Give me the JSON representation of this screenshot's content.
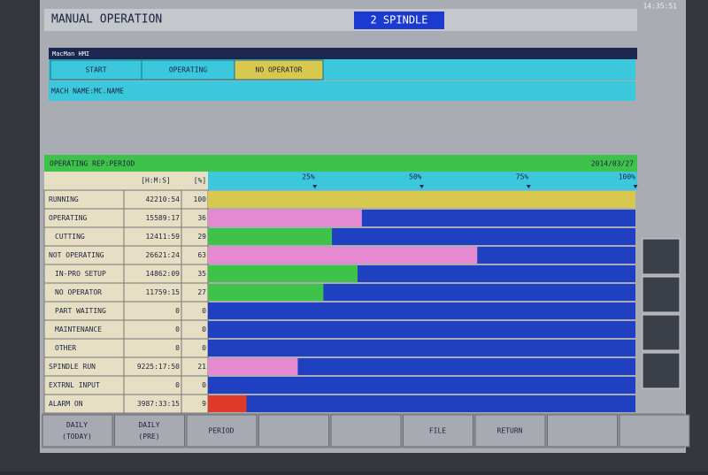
{
  "header": {
    "title": "MANUAL OPERATION",
    "mode": "2 SPINDLE",
    "clock": "14:35:51"
  },
  "window_title": "MacMan HMI",
  "status": {
    "tabs": [
      "START",
      "OPERATING",
      "NO OPERATOR"
    ],
    "machine_name": "MACH NAME:MC.NAME"
  },
  "report": {
    "title": "OPERATING REP:PERIOD",
    "date": "2014/03/27",
    "time_header": "[H:M:S]",
    "percent_header": "[%]",
    "xlim": [
      0,
      100
    ],
    "xticks": [
      {
        "value": 25,
        "label": "25%"
      },
      {
        "value": 50,
        "label": "50%"
      },
      {
        "value": 75,
        "label": "75%"
      },
      {
        "value": 100,
        "label": "100%"
      }
    ],
    "rows": [
      {
        "label": "RUNNING",
        "time": "42210:54",
        "percent": 100,
        "color": "#d8c84e"
      },
      {
        "label": "OPERATING",
        "time": "15589:17",
        "percent": 36,
        "color": "#e58ad0"
      },
      {
        "label": "CUTTING",
        "time": "12411:59",
        "percent": 29,
        "color": "#3ec24a"
      },
      {
        "label": "NOT OPERATING",
        "time": "26621:24",
        "percent": 63,
        "color": "#e58ad0"
      },
      {
        "label": "IN-PRO SETUP",
        "time": "14862:09",
        "percent": 35,
        "color": "#3ec24a"
      },
      {
        "label": "NO OPERATOR",
        "time": "11759:15",
        "percent": 27,
        "color": "#3ec24a"
      },
      {
        "label": "PART WAITING",
        "time": "0",
        "percent": 0,
        "color": "#3ec24a"
      },
      {
        "label": "MAINTENANCE",
        "time": "0",
        "percent": 0,
        "color": "#3ec24a"
      },
      {
        "label": "OTHER",
        "time": "0",
        "percent": 0,
        "color": "#3ec24a"
      },
      {
        "label": "SPINDLE RUN",
        "time": "9225:17:50",
        "percent": 21,
        "color": "#e58ad0"
      },
      {
        "label": "EXTRNL INPUT",
        "time": "0",
        "percent": 0,
        "color": "#3ec24a"
      },
      {
        "label": "ALARM ON",
        "time": "3987:33:15",
        "percent": 9,
        "color": "#e03a2a"
      }
    ]
  },
  "softkeys": [
    [
      "DAILY",
      "(TODAY)"
    ],
    [
      "DAILY",
      "(PRE)"
    ],
    [
      "PERIOD"
    ],
    [
      "FILE"
    ],
    [
      "RETURN"
    ]
  ]
}
